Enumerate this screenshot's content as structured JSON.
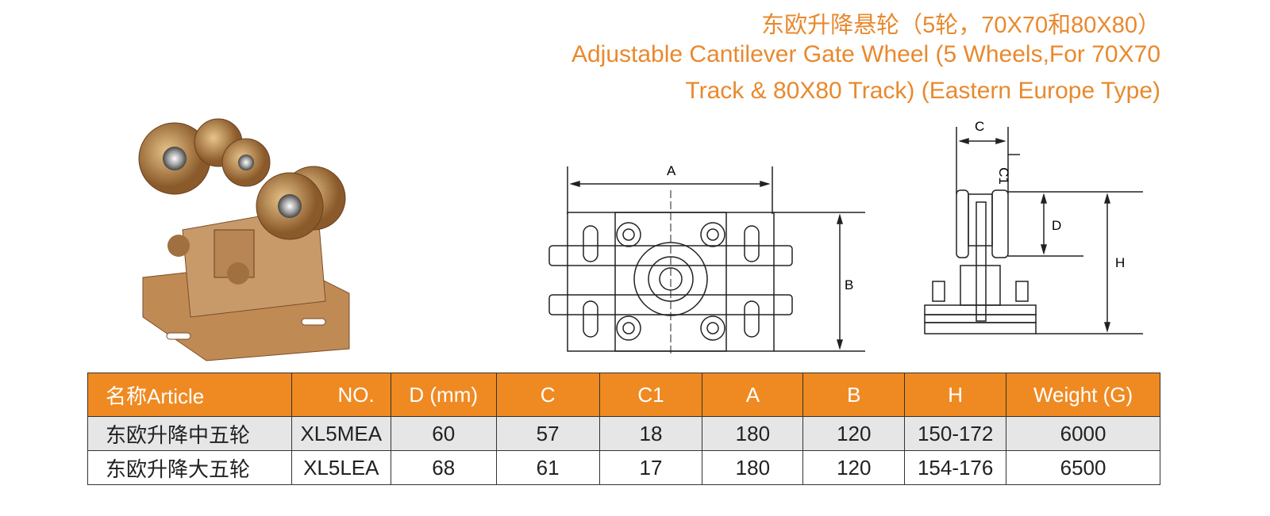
{
  "title": {
    "zh": "东欧升降悬轮（5轮，70X70和80X80）",
    "en_line1": "Adjustable Cantilever Gate Wheel (5 Wheels,For 70X70",
    "en_line2": "Track & 80X80 Track) (Eastern Europe Type)"
  },
  "colors": {
    "accent": "#ef8a22",
    "title": "#e8892e",
    "row_alt": "#e6e6e6"
  },
  "diagram_labels": {
    "A": "A",
    "B": "B",
    "C": "C",
    "C1": "C1",
    "D": "D",
    "H": "H"
  },
  "table": {
    "headers": [
      "名称Article",
      "NO.",
      "D (mm)",
      "C",
      "C1",
      "A",
      "B",
      "H",
      "Weight (G)"
    ],
    "rows": [
      [
        "东欧升降中五轮",
        "XL5MEA",
        "60",
        "57",
        "18",
        "180",
        "120",
        "150-172",
        "6000"
      ],
      [
        "东欧升降大五轮",
        "XL5LEA",
        "68",
        "61",
        "17",
        "180",
        "120",
        "154-176",
        "6500"
      ]
    ]
  }
}
